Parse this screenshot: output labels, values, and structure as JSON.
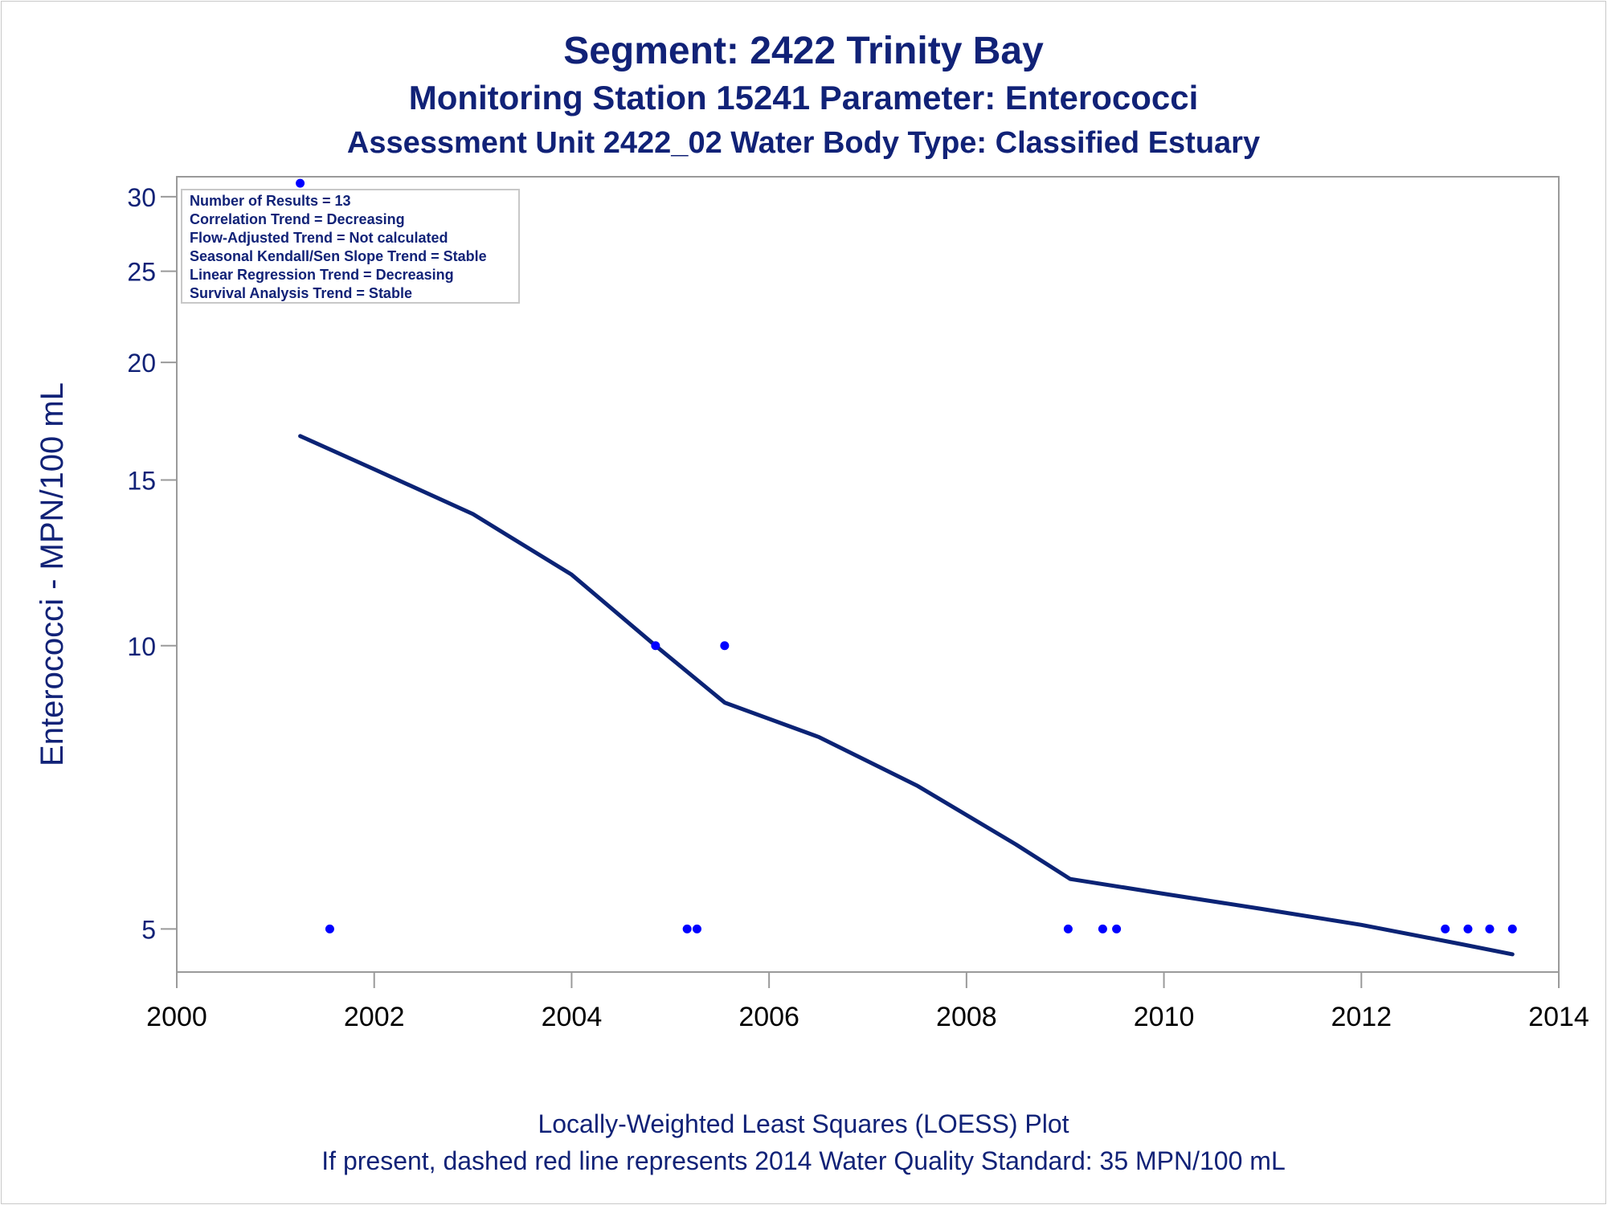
{
  "titles": {
    "line1": "Segment: 2422  Trinity Bay",
    "line2": "Monitoring Station 15241 Parameter: Enterococci",
    "line3": "Assessment Unit 2422_02   Water Body Type: Classified Estuary"
  },
  "footnotes": {
    "line1": "Locally-Weighted Least Squares (LOESS) Plot",
    "line2": "If present, dashed red line represents 2014 Water Quality Standard: 35 MPN/100 mL"
  },
  "stats_box": [
    "Number of Results = 13",
    "Correlation Trend = Decreasing",
    "Flow-Adjusted Trend = Not calculated",
    "Seasonal Kendall/Sen Slope Trend = Stable",
    "Linear Regression Trend = Decreasing",
    "Survival Analysis Trend = Stable"
  ],
  "colors": {
    "text": "#112277",
    "points": "#0000ff",
    "loess_line": "#0b2375",
    "axis": "#9a9a9a",
    "tick_text": "#112277",
    "x_tick_text": "#000000"
  },
  "chart_data": {
    "type": "scatter",
    "title": "Segment: 2422  Trinity Bay",
    "xlabel": "",
    "ylabel": "Enterococci - MPN/100 mL",
    "xlim": [
      2000,
      2014
    ],
    "ylim": [
      4.5,
      31.5
    ],
    "y_scale": "log",
    "grid": false,
    "legend": "none",
    "x_ticks": [
      2000,
      2002,
      2004,
      2006,
      2008,
      2010,
      2012,
      2014
    ],
    "y_ticks": [
      5,
      10,
      15,
      20,
      25,
      30
    ],
    "points": [
      {
        "x": 2001.25,
        "y": 31
      },
      {
        "x": 2001.55,
        "y": 5
      },
      {
        "x": 2004.85,
        "y": 10
      },
      {
        "x": 2005.17,
        "y": 5
      },
      {
        "x": 2005.27,
        "y": 5
      },
      {
        "x": 2005.55,
        "y": 10
      },
      {
        "x": 2009.03,
        "y": 5
      },
      {
        "x": 2009.38,
        "y": 5
      },
      {
        "x": 2009.52,
        "y": 5
      },
      {
        "x": 2012.85,
        "y": 5
      },
      {
        "x": 2013.08,
        "y": 5
      },
      {
        "x": 2013.3,
        "y": 5
      },
      {
        "x": 2013.53,
        "y": 5
      }
    ],
    "loess_line": [
      {
        "x": 2001.25,
        "y": 16.7
      },
      {
        "x": 2002.0,
        "y": 15.4
      },
      {
        "x": 2003.0,
        "y": 13.8
      },
      {
        "x": 2004.0,
        "y": 11.9
      },
      {
        "x": 2004.85,
        "y": 10.0
      },
      {
        "x": 2005.55,
        "y": 8.7
      },
      {
        "x": 2006.5,
        "y": 8.0
      },
      {
        "x": 2007.5,
        "y": 7.1
      },
      {
        "x": 2008.5,
        "y": 6.15
      },
      {
        "x": 2009.05,
        "y": 5.65
      },
      {
        "x": 2010.0,
        "y": 5.45
      },
      {
        "x": 2011.0,
        "y": 5.25
      },
      {
        "x": 2012.0,
        "y": 5.05
      },
      {
        "x": 2013.0,
        "y": 4.82
      },
      {
        "x": 2013.53,
        "y": 4.7
      }
    ]
  }
}
